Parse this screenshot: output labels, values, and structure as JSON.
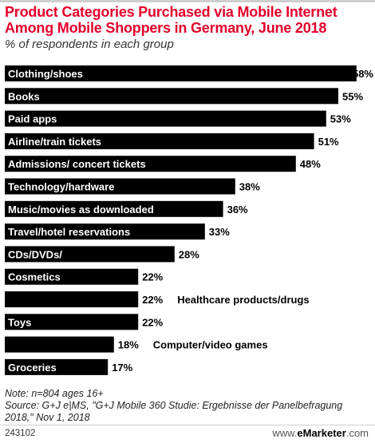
{
  "header": {
    "title": "Product Categories Purchased via Mobile Internet Among Mobile Shoppers in Germany, June 2018",
    "subtitle": "% of respondents in each group"
  },
  "chart_data": {
    "type": "bar",
    "orientation": "horizontal",
    "categories": [
      "Clothing/shoes",
      "Books",
      "Paid apps",
      "Airline/train tickets",
      "Admissions/ concert tickets",
      "Technology/hardware",
      "Music/movies as downloaded",
      "Travel/hotel reservations",
      "CDs/DVDs/",
      "Cosmetics",
      "Healthcare products/drugs",
      "Toys",
      "Computer/video games",
      "Groceries"
    ],
    "values": [
      58,
      55,
      53,
      51,
      48,
      38,
      36,
      33,
      28,
      22,
      22,
      22,
      18,
      17
    ],
    "value_labels": [
      "58%",
      "55%",
      "53%",
      "51%",
      "48%",
      "38%",
      "36%",
      "33%",
      "28%",
      "22%",
      "22%",
      "22%",
      "18%",
      "17%"
    ],
    "xlim": [
      0,
      60
    ],
    "bar_color": "#000000",
    "label_color": "#ffffff",
    "grid": false,
    "legend": "none"
  },
  "note": {
    "line1": "Note: n=804 ages 16+",
    "line2": "Source: G+J e|MS, \"G+J Mobile 360 Studie: Ergebnisse der Panelbefragung 2018,\" Nov 1, 2018"
  },
  "footer": {
    "id": "243102",
    "brand_prefix": "www.",
    "brand_name": "eMarketer",
    "brand_suffix": ".com"
  }
}
